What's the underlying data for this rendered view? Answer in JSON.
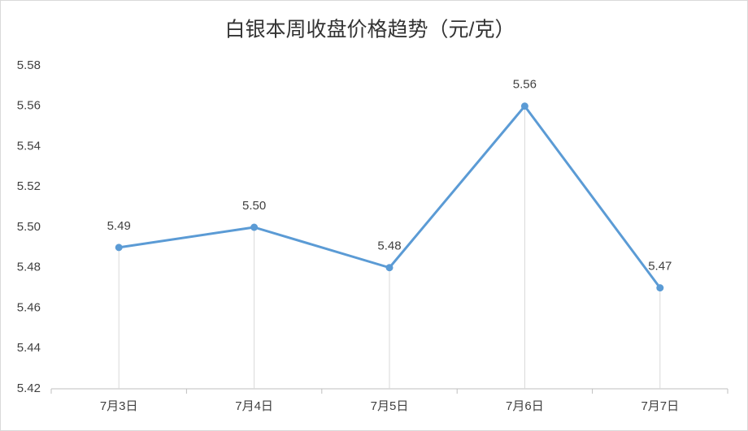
{
  "chart_data": {
    "type": "line",
    "title": "白银本周收盘价格趋势（元/克）",
    "categories": [
      "7月3日",
      "7月4日",
      "7月5日",
      "7月6日",
      "7月7日"
    ],
    "values": [
      5.49,
      5.5,
      5.48,
      5.56,
      5.47
    ],
    "value_labels": [
      "5.49",
      "5.50",
      "5.48",
      "5.56",
      "5.47"
    ],
    "color": "#5b9bd5",
    "ylim": [
      5.42,
      5.58
    ],
    "yticks": [
      5.42,
      5.44,
      5.46,
      5.48,
      {
        "value": 5.5,
        "label": "5.50"
      },
      5.52,
      5.54,
      5.56,
      5.58
    ],
    "drop_lines": true
  }
}
